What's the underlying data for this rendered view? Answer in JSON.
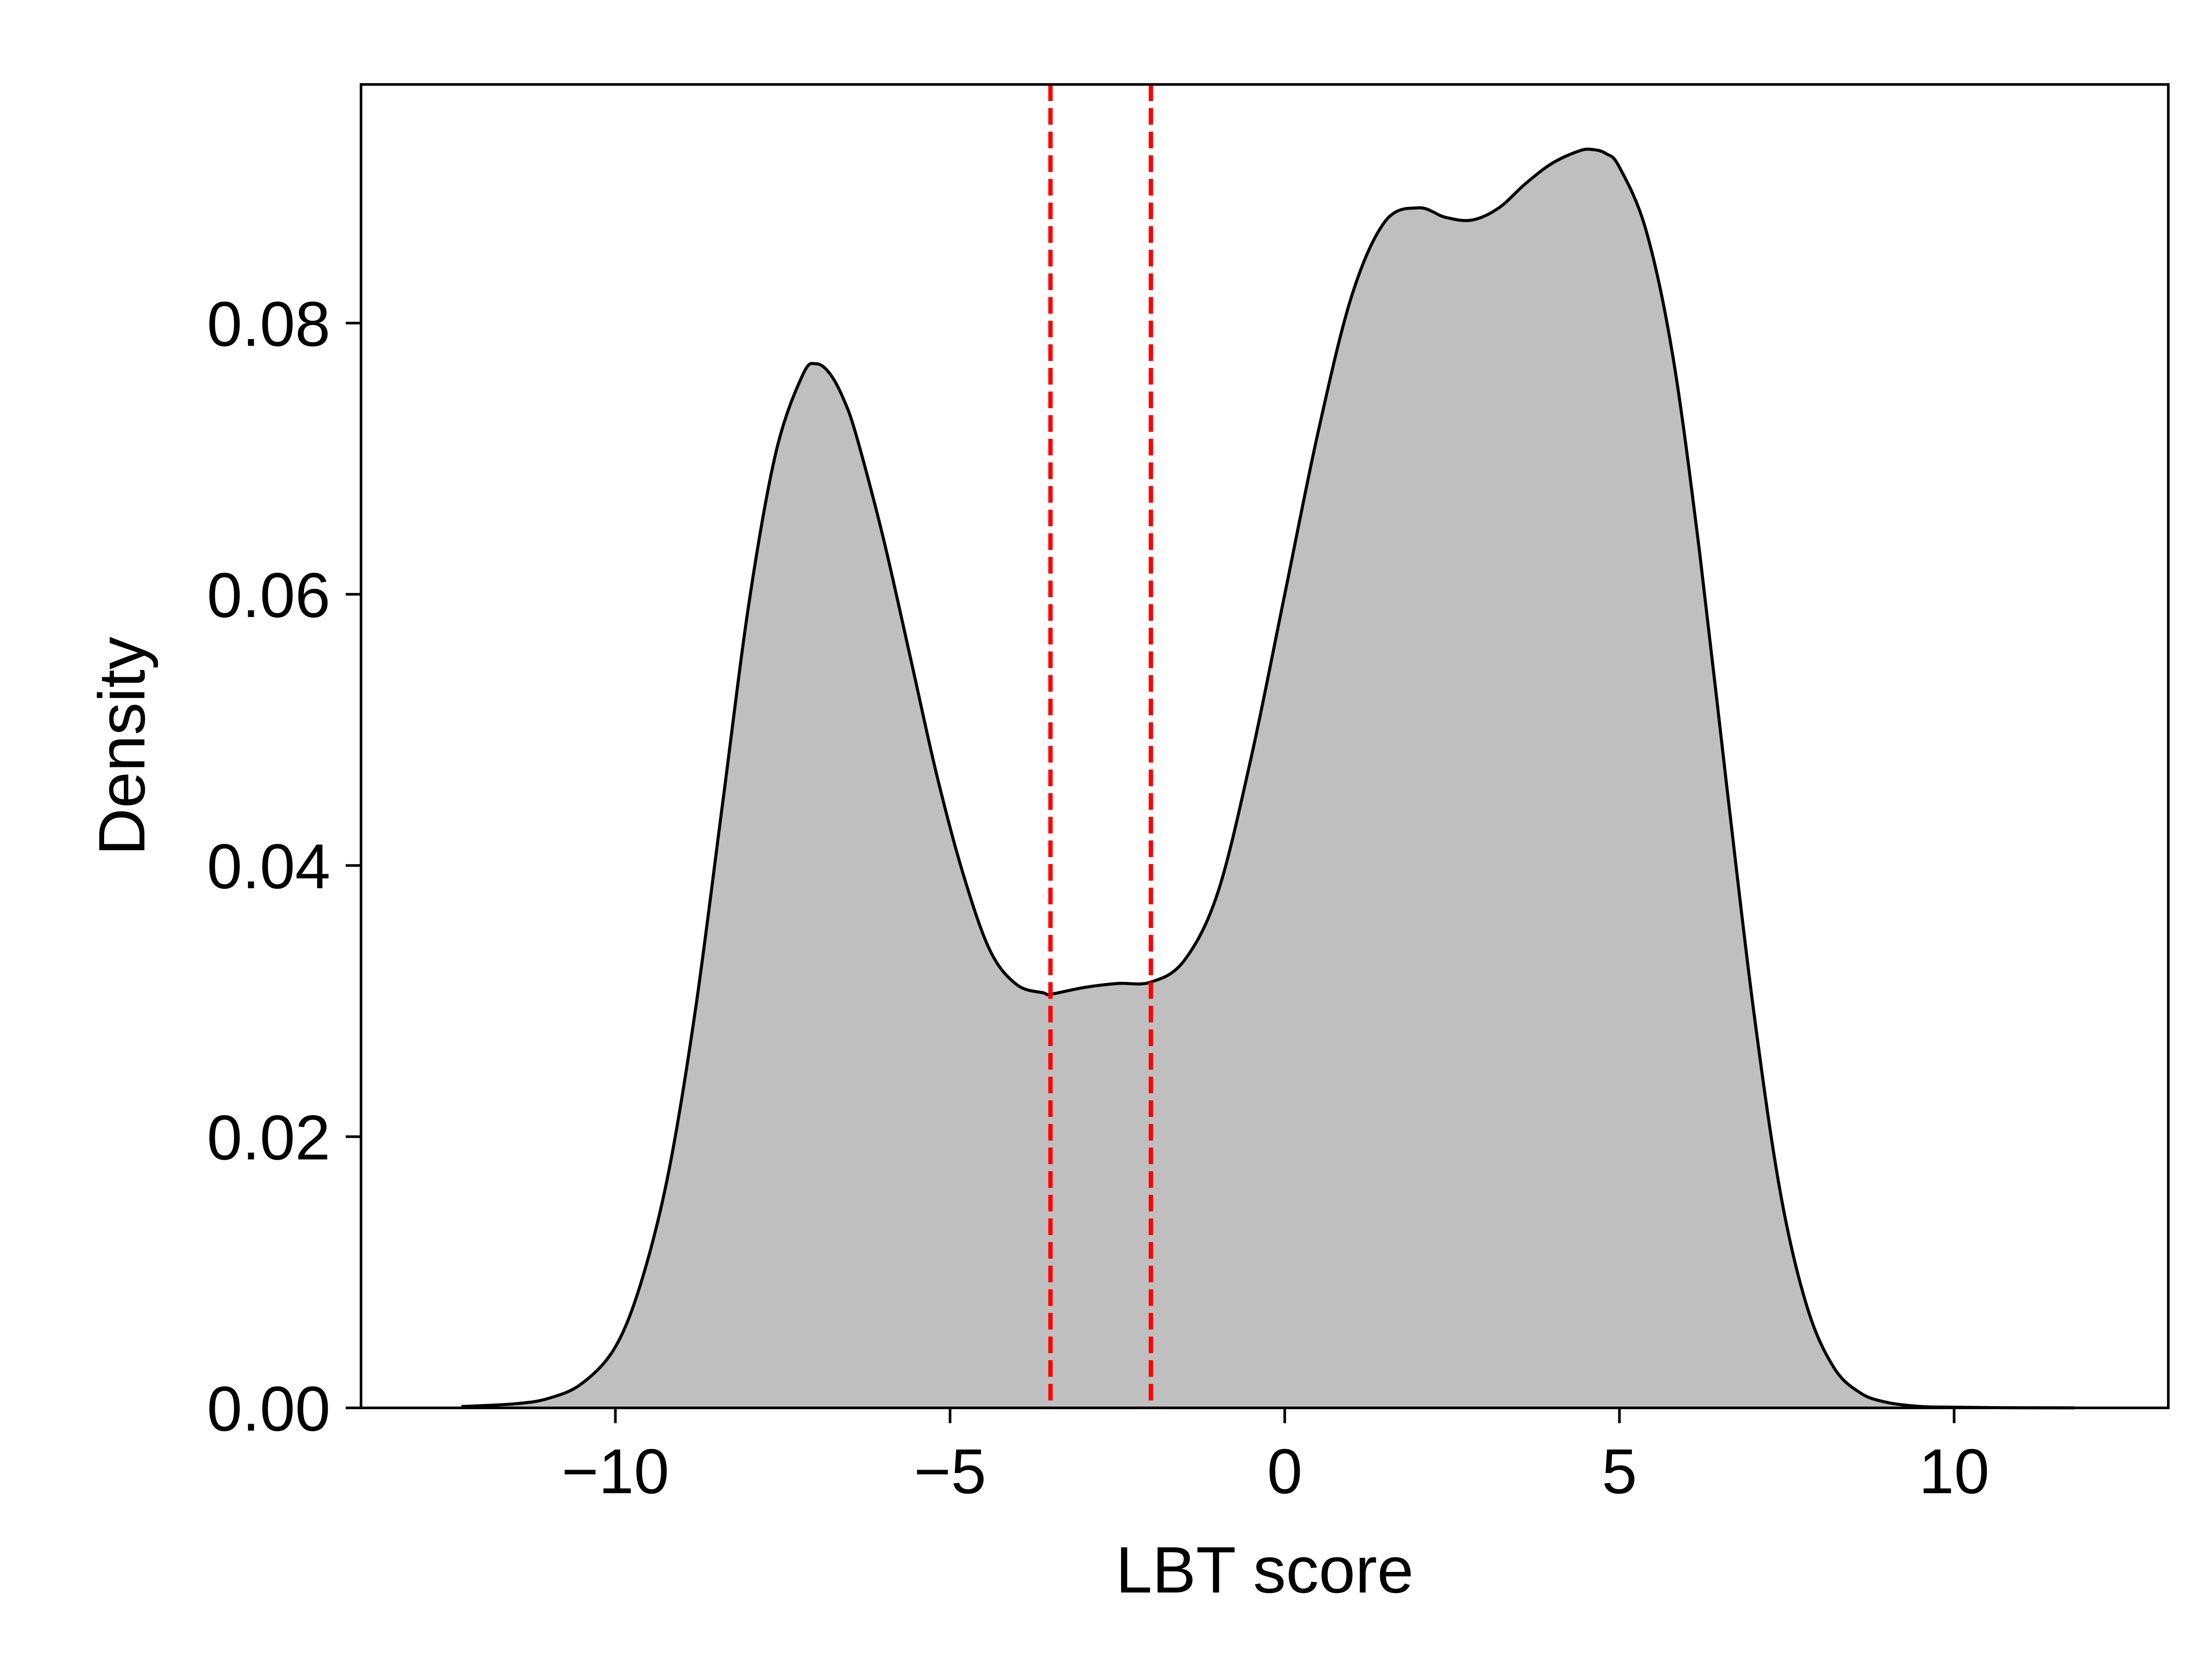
{
  "chart_data": {
    "type": "area",
    "title": "",
    "xlabel": "LBT score",
    "ylabel": "Density",
    "xlim": [
      -13.8,
      13.2
    ],
    "ylim": [
      0,
      0.0976
    ],
    "grid": false,
    "legend": "none",
    "x_ticks": [
      -10,
      -5,
      0,
      5,
      10
    ],
    "x_tick_labels": [
      "−10",
      "−5",
      "0",
      "5",
      "10"
    ],
    "y_ticks": [
      0,
      0.02,
      0.04,
      0.06,
      0.08
    ],
    "y_tick_labels": [
      "0.00",
      "0.02",
      "0.04",
      "0.06",
      "0.08"
    ],
    "series": [
      {
        "x": [
          -12.3,
          -11.5,
          -11.0,
          -10.5,
          -10.0,
          -9.6,
          -9.2,
          -8.8,
          -8.4,
          -8.0,
          -7.6,
          -7.2,
          -7.0,
          -6.8,
          -6.6,
          -6.4,
          -6.0,
          -5.6,
          -5.2,
          -4.8,
          -4.4,
          -4.0,
          -3.6,
          -3.5,
          -3.0,
          -2.5,
          -2.0,
          -1.5,
          -1.0,
          -0.5,
          0.0,
          0.5,
          1.0,
          1.5,
          2.0,
          2.4,
          2.8,
          3.2,
          3.6,
          4.0,
          4.4,
          4.6,
          4.8,
          5.0,
          5.4,
          5.8,
          6.2,
          6.6,
          7.0,
          7.4,
          7.8,
          8.2,
          8.6,
          9.0,
          9.5,
          10.0,
          10.5,
          11.0,
          11.8
        ],
        "y": [
          0.0001,
          0.0003,
          0.0007,
          0.0018,
          0.0045,
          0.0095,
          0.0175,
          0.0295,
          0.0445,
          0.0595,
          0.0705,
          0.0762,
          0.077,
          0.0763,
          0.0745,
          0.0717,
          0.0642,
          0.0555,
          0.0467,
          0.0393,
          0.0337,
          0.0312,
          0.0306,
          0.0305,
          0.031,
          0.0313,
          0.0314,
          0.033,
          0.038,
          0.048,
          0.06,
          0.072,
          0.082,
          0.0875,
          0.0885,
          0.0878,
          0.0876,
          0.0885,
          0.0903,
          0.0918,
          0.0927,
          0.0928,
          0.0925,
          0.0915,
          0.0868,
          0.0775,
          0.063,
          0.046,
          0.0295,
          0.016,
          0.0075,
          0.003,
          0.0011,
          0.0004,
          0.0001,
          5e-05,
          2e-05,
          1e-05,
          0.0
        ]
      }
    ],
    "vlines": [
      -3.5,
      -2.0
    ],
    "colors": {
      "fill": "#bfbfbf",
      "line": "#000000",
      "vline": "#ff0000"
    }
  }
}
